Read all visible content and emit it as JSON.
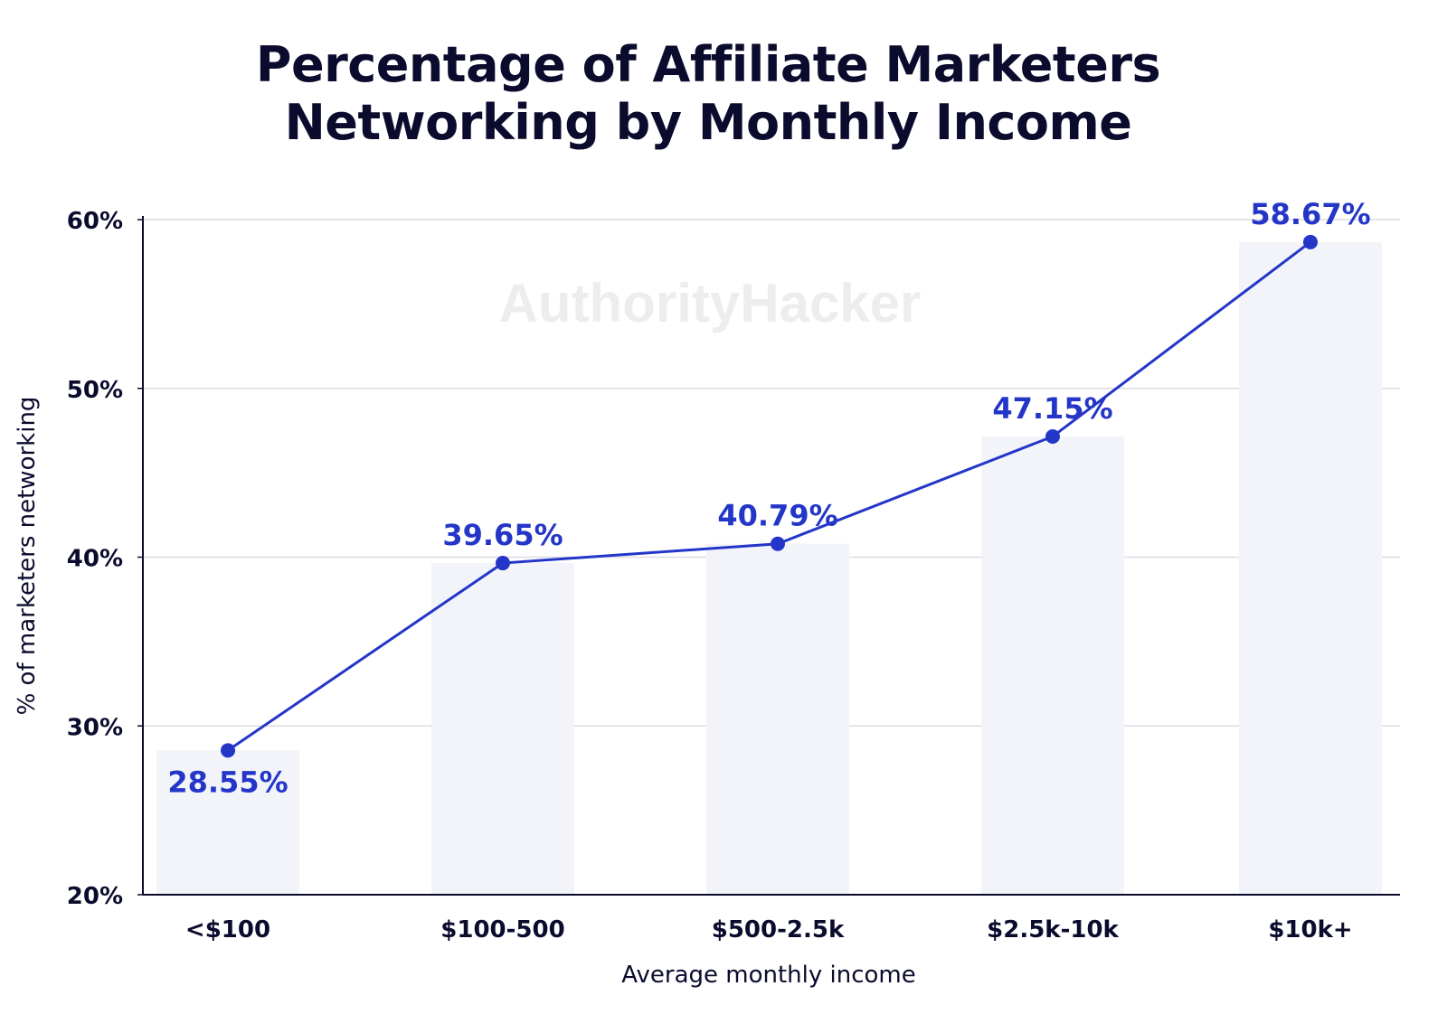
{
  "chart_data": {
    "type": "line",
    "title_lines": [
      "Percentage of Affiliate Marketers",
      "Networking by Monthly Income"
    ],
    "xlabel": "Average monthly income",
    "ylabel": "% of marketers networking",
    "categories": [
      "<$100",
      "$100-500",
      "$500-2.5k",
      "$2.5k-10k",
      "$10k+"
    ],
    "values": [
      28.55,
      39.65,
      40.79,
      47.15,
      58.67
    ],
    "data_labels": [
      "28.55%",
      "39.65%",
      "40.79%",
      "47.15%",
      "58.67%"
    ],
    "ylim": [
      20,
      60
    ],
    "yticks": [
      20,
      30,
      40,
      50,
      60
    ],
    "ytick_labels": [
      "20%",
      "30%",
      "40%",
      "50%",
      "60%"
    ],
    "grid": true,
    "background_bars": true,
    "watermark": "AuthorityHacker",
    "colors": {
      "line": "#2336c8",
      "bar": "#f3f4fa",
      "text": "#0b0b2e",
      "grid": "#dcdce4"
    }
  }
}
